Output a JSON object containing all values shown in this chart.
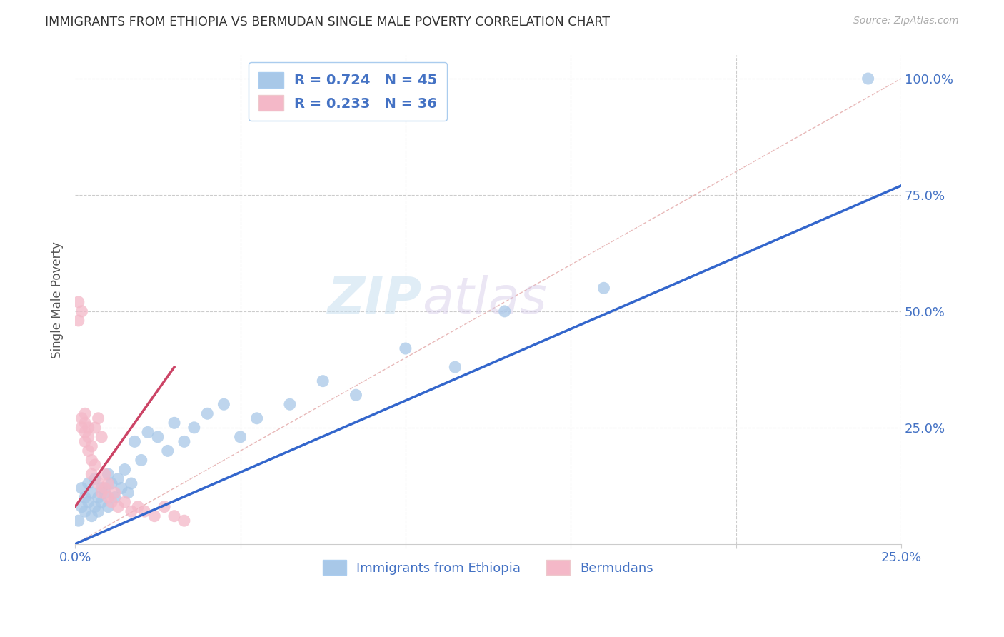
{
  "title": "IMMIGRANTS FROM ETHIOPIA VS BERMUDAN SINGLE MALE POVERTY CORRELATION CHART",
  "source": "Source: ZipAtlas.com",
  "ylabel": "Single Male Poverty",
  "xlim": [
    0.0,
    0.25
  ],
  "ylim": [
    0.0,
    1.05
  ],
  "yticks": [
    0.0,
    0.25,
    0.5,
    0.75,
    1.0
  ],
  "ytick_labels": [
    "",
    "25.0%",
    "50.0%",
    "75.0%",
    "100.0%"
  ],
  "xticks": [
    0.0,
    0.05,
    0.1,
    0.15,
    0.2,
    0.25
  ],
  "xtick_labels": [
    "0.0%",
    "",
    "",
    "",
    "",
    "25.0%"
  ],
  "legend_r_blue": "R = 0.724",
  "legend_n_blue": "N = 45",
  "legend_r_pink": "R = 0.233",
  "legend_n_pink": "N = 36",
  "watermark_zip": "ZIP",
  "watermark_atlas": "atlas",
  "blue_color": "#a8c8e8",
  "blue_line_color": "#3366cc",
  "pink_color": "#f4b8c8",
  "pink_line_color": "#cc4466",
  "diagonal_color": "#e8b8b8",
  "grid_color": "#cccccc",
  "axis_label_color": "#4472c4",
  "blue_scatter_x": [
    0.001,
    0.002,
    0.002,
    0.003,
    0.003,
    0.004,
    0.004,
    0.005,
    0.005,
    0.006,
    0.006,
    0.007,
    0.007,
    0.008,
    0.008,
    0.009,
    0.01,
    0.01,
    0.011,
    0.012,
    0.013,
    0.014,
    0.015,
    0.016,
    0.017,
    0.018,
    0.02,
    0.022,
    0.025,
    0.028,
    0.03,
    0.033,
    0.036,
    0.04,
    0.045,
    0.05,
    0.055,
    0.065,
    0.075,
    0.085,
    0.1,
    0.115,
    0.13,
    0.16,
    0.24
  ],
  "blue_scatter_y": [
    0.05,
    0.08,
    0.12,
    0.07,
    0.1,
    0.09,
    0.13,
    0.06,
    0.11,
    0.08,
    0.14,
    0.1,
    0.07,
    0.12,
    0.09,
    0.11,
    0.08,
    0.15,
    0.13,
    0.1,
    0.14,
    0.12,
    0.16,
    0.11,
    0.13,
    0.22,
    0.18,
    0.24,
    0.23,
    0.2,
    0.26,
    0.22,
    0.25,
    0.28,
    0.3,
    0.23,
    0.27,
    0.3,
    0.35,
    0.32,
    0.42,
    0.38,
    0.5,
    0.55,
    1.0
  ],
  "pink_scatter_x": [
    0.001,
    0.001,
    0.002,
    0.002,
    0.002,
    0.003,
    0.003,
    0.003,
    0.003,
    0.004,
    0.004,
    0.004,
    0.005,
    0.005,
    0.005,
    0.006,
    0.006,
    0.007,
    0.007,
    0.008,
    0.008,
    0.009,
    0.009,
    0.01,
    0.01,
    0.011,
    0.012,
    0.013,
    0.015,
    0.017,
    0.019,
    0.021,
    0.024,
    0.027,
    0.03,
    0.033
  ],
  "pink_scatter_y": [
    0.48,
    0.52,
    0.5,
    0.25,
    0.27,
    0.24,
    0.26,
    0.22,
    0.28,
    0.2,
    0.23,
    0.25,
    0.18,
    0.21,
    0.15,
    0.17,
    0.25,
    0.13,
    0.27,
    0.11,
    0.23,
    0.12,
    0.15,
    0.1,
    0.13,
    0.09,
    0.11,
    0.08,
    0.09,
    0.07,
    0.08,
    0.07,
    0.06,
    0.08,
    0.06,
    0.05
  ],
  "blue_line_x": [
    0.0,
    0.25
  ],
  "blue_line_y": [
    0.0,
    0.77
  ],
  "pink_line_x": [
    0.0,
    0.03
  ],
  "pink_line_y": [
    0.08,
    0.38
  ],
  "diag_line_x": [
    0.0,
    0.25
  ],
  "diag_line_y": [
    0.0,
    1.0
  ]
}
